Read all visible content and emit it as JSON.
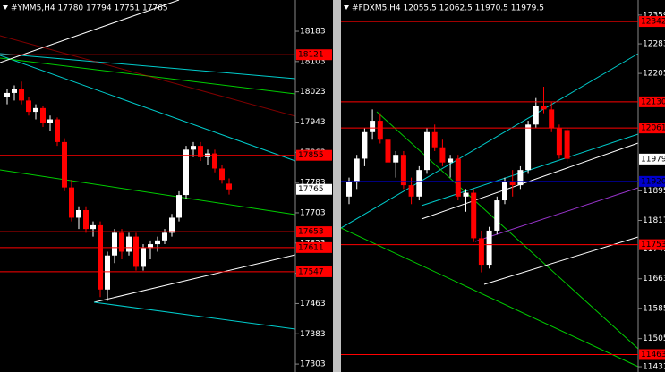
{
  "chart_data": [
    {
      "type": "candlestick",
      "title": "#YMM5,H4  17780 17794 17751 17765",
      "ylim": [
        17289,
        18254
      ],
      "yticks": [
        18183,
        18103,
        18023,
        17943,
        17863,
        17783,
        17703,
        17623,
        17543,
        17463,
        17383,
        17303
      ],
      "levels": [
        18121,
        17855,
        17653,
        17611,
        17547
      ],
      "level_color": "#ff0000",
      "current": 17765,
      "up_color": "#ffffff",
      "down_color": "#ff0000",
      "open": [
        18010,
        18020,
        18030,
        18000,
        17970,
        17980,
        17940,
        17950,
        17890,
        17770,
        17690,
        17710,
        17660,
        17670,
        17500,
        17590,
        17650,
        17600,
        17640,
        17560,
        17610,
        17620,
        17630,
        17650,
        17690,
        17750,
        17870,
        17880,
        17850,
        17860,
        17820,
        17780
      ],
      "high": [
        18030,
        18040,
        18050,
        18010,
        17990,
        17985,
        17960,
        17955,
        17900,
        17790,
        17720,
        17720,
        17680,
        17680,
        17600,
        17660,
        17660,
        17650,
        17650,
        17620,
        17630,
        17640,
        17660,
        17700,
        17760,
        17880,
        17890,
        17890,
        17870,
        17870,
        17830,
        17794
      ],
      "low": [
        17990,
        18000,
        17990,
        17960,
        17950,
        17930,
        17920,
        17880,
        17760,
        17680,
        17660,
        17650,
        17640,
        17480,
        17470,
        17570,
        17580,
        17590,
        17550,
        17550,
        17580,
        17600,
        17620,
        17640,
        17680,
        17740,
        17850,
        17840,
        17830,
        17810,
        17780,
        17751
      ],
      "close": [
        18020,
        18030,
        18000,
        17970,
        17980,
        17940,
        17950,
        17890,
        17770,
        17690,
        17710,
        17660,
        17670,
        17500,
        17590,
        17650,
        17600,
        17640,
        17560,
        17610,
        17620,
        17630,
        17650,
        17690,
        17750,
        17870,
        17880,
        17850,
        17860,
        17820,
        17790,
        17765
      ]
    },
    {
      "type": "candlestick",
      "title": "#FDXM5,H4  12055.5 12062.5 11970.5 11979.5",
      "ylim": [
        11424,
        12387
      ],
      "yticks": [
        12359,
        12283,
        12205,
        11895,
        11817,
        11741,
        11663,
        11585,
        11505,
        11431
      ],
      "levels": [
        12342,
        12130,
        12061,
        11753,
        11463
      ],
      "level_color": "#ff0000",
      "blue_level": 11920,
      "blue_color": "#0000cc",
      "current": 11979,
      "up_color": "#ffffff",
      "down_color": "#ff0000",
      "open": [
        11880,
        11920,
        11980,
        12050,
        12080,
        12030,
        11970,
        11990,
        11910,
        11880,
        11950,
        12050,
        12010,
        11970,
        11980,
        11880,
        11890,
        11770,
        11700,
        11790,
        11870,
        11920,
        11910,
        11950,
        12070,
        12120,
        12110,
        12060,
        12055.5
      ],
      "high": [
        11930,
        11990,
        12060,
        12110,
        12100,
        12040,
        12000,
        12000,
        11930,
        11960,
        12060,
        12070,
        12030,
        11990,
        11990,
        11900,
        11900,
        11790,
        11800,
        11880,
        11930,
        11950,
        11960,
        12080,
        12140,
        12170,
        12130,
        12070,
        12062.5
      ],
      "low": [
        11860,
        11900,
        11960,
        12030,
        12020,
        11960,
        11930,
        11900,
        11860,
        11870,
        11940,
        12000,
        11960,
        11930,
        11870,
        11840,
        11760,
        11680,
        11690,
        11780,
        11860,
        11880,
        11900,
        11940,
        12060,
        12100,
        12050,
        11980,
        11970.5
      ],
      "close": [
        11920,
        11980,
        12050,
        12080,
        12030,
        11970,
        11990,
        11910,
        11880,
        11950,
        12050,
        12010,
        11970,
        11980,
        11880,
        11890,
        11770,
        11700,
        11790,
        11870,
        11920,
        11910,
        11950,
        12070,
        12120,
        12110,
        12060,
        11990,
        11979.5
      ]
    }
  ]
}
